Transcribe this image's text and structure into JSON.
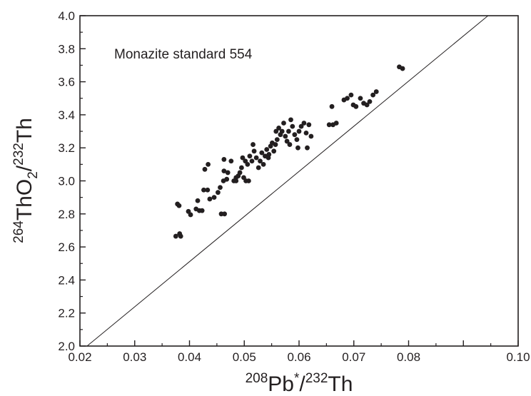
{
  "chart_data": {
    "type": "scatter",
    "annotation": "Monazite standard 554",
    "xlabel": {
      "sup1": "208",
      "base1": "Pb",
      "sup2": "*",
      "base2": "/",
      "sup3": "232",
      "base3": "Th"
    },
    "ylabel": {
      "sup1": "264",
      "base1": "ThO",
      "sub": "2",
      "base2": "/",
      "sup2": "232",
      "base3": "Th"
    },
    "xlim": [
      0.02,
      0.1
    ],
    "ylim": [
      2.0,
      4.0
    ],
    "x_ticks": [
      0.02,
      0.03,
      0.04,
      0.05,
      0.06,
      0.07,
      0.08,
      0.09,
      0.1
    ],
    "x_tick_labels": [
      "0.02",
      "0.03",
      "0.04",
      "0.05",
      "0.06",
      "0.07",
      "0.08",
      "",
      "0.10"
    ],
    "y_ticks": [
      2.0,
      2.2,
      2.4,
      2.6,
      2.8,
      3.0,
      3.2,
      3.4,
      3.6,
      3.8,
      4.0
    ],
    "y_tick_labels": [
      "2.0",
      "2.2",
      "2.4",
      "2.6",
      "2.8",
      "3.0",
      "3.2",
      "3.4",
      "3.6",
      "3.8",
      "4.0"
    ],
    "grid": false,
    "fit_line": {
      "x": [
        0.0213,
        0.0945
      ],
      "y": [
        2.0,
        4.0
      ]
    },
    "points": [
      [
        0.0375,
        2.665
      ],
      [
        0.0382,
        2.68
      ],
      [
        0.0384,
        2.665
      ],
      [
        0.0378,
        2.86
      ],
      [
        0.0381,
        2.85
      ],
      [
        0.0398,
        2.815
      ],
      [
        0.0402,
        2.795
      ],
      [
        0.0412,
        2.83
      ],
      [
        0.0418,
        2.82
      ],
      [
        0.0423,
        2.82
      ],
      [
        0.0415,
        2.88
      ],
      [
        0.0426,
        2.945
      ],
      [
        0.0433,
        2.945
      ],
      [
        0.0428,
        3.07
      ],
      [
        0.0434,
        3.1
      ],
      [
        0.0437,
        2.89
      ],
      [
        0.0445,
        2.9
      ],
      [
        0.0452,
        2.93
      ],
      [
        0.0456,
        2.96
      ],
      [
        0.0458,
        2.8
      ],
      [
        0.0464,
        2.8
      ],
      [
        0.0462,
        3.0
      ],
      [
        0.0468,
        3.01
      ],
      [
        0.0463,
        3.06
      ],
      [
        0.047,
        3.05
      ],
      [
        0.0463,
        3.13
      ],
      [
        0.0476,
        3.12
      ],
      [
        0.0481,
        3.0
      ],
      [
        0.0485,
        3.02
      ],
      [
        0.0489,
        3.03
      ],
      [
        0.0492,
        3.05
      ],
      [
        0.0495,
        3.08
      ],
      [
        0.0499,
        3.02
      ],
      [
        0.0503,
        3.0
      ],
      [
        0.0497,
        3.14
      ],
      [
        0.0502,
        3.12
      ],
      [
        0.0506,
        3.1
      ],
      [
        0.051,
        3.15
      ],
      [
        0.0514,
        3.12
      ],
      [
        0.0518,
        3.18
      ],
      [
        0.0516,
        3.22
      ],
      [
        0.0522,
        3.14
      ],
      [
        0.0526,
        3.08
      ],
      [
        0.0529,
        3.12
      ],
      [
        0.0532,
        3.17
      ],
      [
        0.0535,
        3.1
      ],
      [
        0.0538,
        3.15
      ],
      [
        0.0541,
        3.19
      ],
      [
        0.0544,
        3.14
      ],
      [
        0.0548,
        3.21
      ],
      [
        0.0551,
        3.23
      ],
      [
        0.0554,
        3.18
      ],
      [
        0.0557,
        3.22
      ],
      [
        0.056,
        3.25
      ],
      [
        0.0558,
        3.3
      ],
      [
        0.0563,
        3.32
      ],
      [
        0.0566,
        3.28
      ],
      [
        0.0569,
        3.3
      ],
      [
        0.0572,
        3.35
      ],
      [
        0.0575,
        3.27
      ],
      [
        0.0578,
        3.24
      ],
      [
        0.0581,
        3.3
      ],
      [
        0.0585,
        3.37
      ],
      [
        0.0588,
        3.33
      ],
      [
        0.0583,
        3.22
      ],
      [
        0.0592,
        3.28
      ],
      [
        0.0596,
        3.25
      ],
      [
        0.06,
        3.3
      ],
      [
        0.0604,
        3.33
      ],
      [
        0.0609,
        3.35
      ],
      [
        0.0613,
        3.29
      ],
      [
        0.0618,
        3.34
      ],
      [
        0.0622,
        3.27
      ],
      [
        0.0615,
        3.2
      ],
      [
        0.0598,
        3.2
      ],
      [
        0.0655,
        3.34
      ],
      [
        0.0662,
        3.34
      ],
      [
        0.0668,
        3.35
      ],
      [
        0.066,
        3.45
      ],
      [
        0.0682,
        3.49
      ],
      [
        0.0688,
        3.5
      ],
      [
        0.0695,
        3.52
      ],
      [
        0.0699,
        3.46
      ],
      [
        0.0704,
        3.45
      ],
      [
        0.0712,
        3.5
      ],
      [
        0.0718,
        3.47
      ],
      [
        0.0724,
        3.46
      ],
      [
        0.0729,
        3.48
      ],
      [
        0.0735,
        3.52
      ],
      [
        0.0741,
        3.54
      ],
      [
        0.0783,
        3.69
      ],
      [
        0.0789,
        3.68
      ],
      [
        0.0485,
        3.0
      ],
      [
        0.0508,
        3.0
      ],
      [
        0.0545,
        3.16
      ]
    ]
  }
}
